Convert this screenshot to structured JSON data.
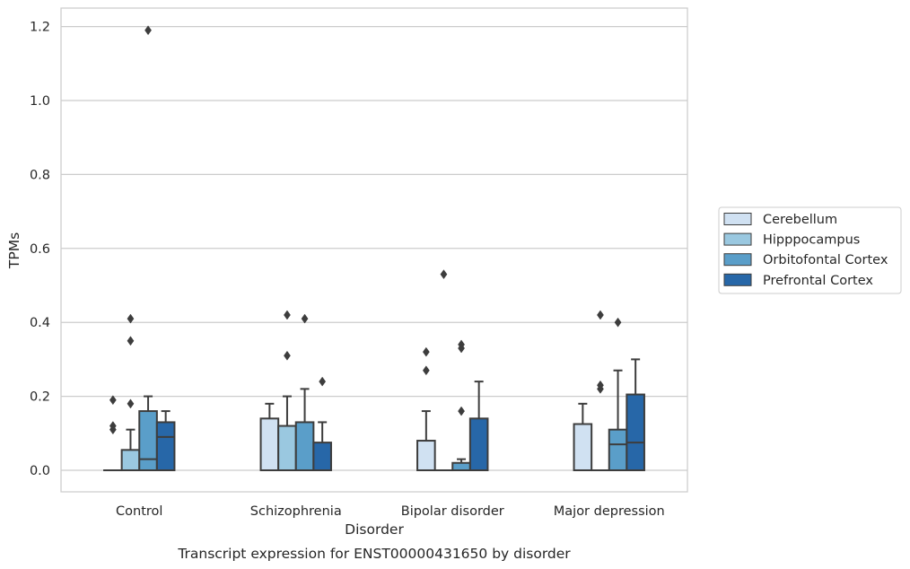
{
  "chart_data": {
    "type": "box",
    "title": "",
    "caption": "Transcript expression for ENST00000431650 by disorder",
    "xlabel": "Disorder",
    "ylabel": "TPMs",
    "ylim": [
      -0.06,
      1.25
    ],
    "yticks": [
      "0.0",
      "0.2",
      "0.4",
      "0.6",
      "0.8",
      "1.0",
      "1.2"
    ],
    "grid": "horizontal",
    "legend_position": "right",
    "categories": [
      "Control",
      "Schizophrenia",
      "Bipolar disorder",
      "Major depression"
    ],
    "series": [
      {
        "name": "Cerebellum",
        "color": "#d0e1f2",
        "boxes": [
          {
            "whislo": 0.0,
            "q1": 0.0,
            "med": 0.0,
            "q3": 0.0,
            "whishi": 0.0,
            "fliers": [
              0.19,
              0.12,
              0.11
            ]
          },
          {
            "whislo": 0.0,
            "q1": 0.0,
            "med": 0.0,
            "q3": 0.14,
            "whishi": 0.18,
            "fliers": []
          },
          {
            "whislo": 0.0,
            "q1": 0.0,
            "med": 0.0,
            "q3": 0.08,
            "whishi": 0.16,
            "fliers": [
              0.32,
              0.27
            ]
          },
          {
            "whislo": 0.0,
            "q1": 0.0,
            "med": 0.0,
            "q3": 0.125,
            "whishi": 0.18,
            "fliers": []
          }
        ]
      },
      {
        "name": "Hipppocampus",
        "color": "#9ac8e0",
        "boxes": [
          {
            "whislo": 0.0,
            "q1": 0.0,
            "med": 0.0,
            "q3": 0.055,
            "whishi": 0.11,
            "fliers": [
              0.41,
              0.35,
              0.18
            ]
          },
          {
            "whislo": 0.0,
            "q1": 0.0,
            "med": 0.0,
            "q3": 0.12,
            "whishi": 0.2,
            "fliers": [
              0.42,
              0.31
            ]
          },
          {
            "whislo": 0.0,
            "q1": 0.0,
            "med": 0.0,
            "q3": 0.0,
            "whishi": 0.0,
            "fliers": [
              0.53
            ]
          },
          {
            "whislo": 0.0,
            "q1": 0.0,
            "med": 0.0,
            "q3": 0.0,
            "whishi": 0.0,
            "fliers": [
              0.42,
              0.23,
              0.22
            ]
          }
        ]
      },
      {
        "name": "Orbitofontal Cortex",
        "color": "#5a9ec9",
        "boxes": [
          {
            "whislo": 0.0,
            "q1": 0.0,
            "med": 0.03,
            "q3": 0.16,
            "whishi": 0.2,
            "fliers": [
              1.19
            ]
          },
          {
            "whislo": 0.0,
            "q1": 0.0,
            "med": 0.0,
            "q3": 0.13,
            "whishi": 0.22,
            "fliers": [
              0.41
            ]
          },
          {
            "whislo": 0.0,
            "q1": 0.0,
            "med": 0.0,
            "q3": 0.02,
            "whishi": 0.03,
            "fliers": [
              0.34,
              0.33,
              0.16
            ]
          },
          {
            "whislo": 0.0,
            "q1": 0.0,
            "med": 0.07,
            "q3": 0.11,
            "whishi": 0.27,
            "fliers": [
              0.4
            ]
          }
        ]
      },
      {
        "name": "Prefrontal Cortex",
        "color": "#2767a8",
        "boxes": [
          {
            "whislo": 0.0,
            "q1": 0.0,
            "med": 0.09,
            "q3": 0.13,
            "whishi": 0.16,
            "fliers": []
          },
          {
            "whislo": 0.0,
            "q1": 0.0,
            "med": 0.0,
            "q3": 0.075,
            "whishi": 0.13,
            "fliers": [
              0.24
            ]
          },
          {
            "whislo": 0.0,
            "q1": 0.0,
            "med": 0.0,
            "q3": 0.14,
            "whishi": 0.24,
            "fliers": []
          },
          {
            "whislo": 0.0,
            "q1": 0.0,
            "med": 0.075,
            "q3": 0.205,
            "whishi": 0.3,
            "fliers": []
          }
        ]
      }
    ]
  }
}
